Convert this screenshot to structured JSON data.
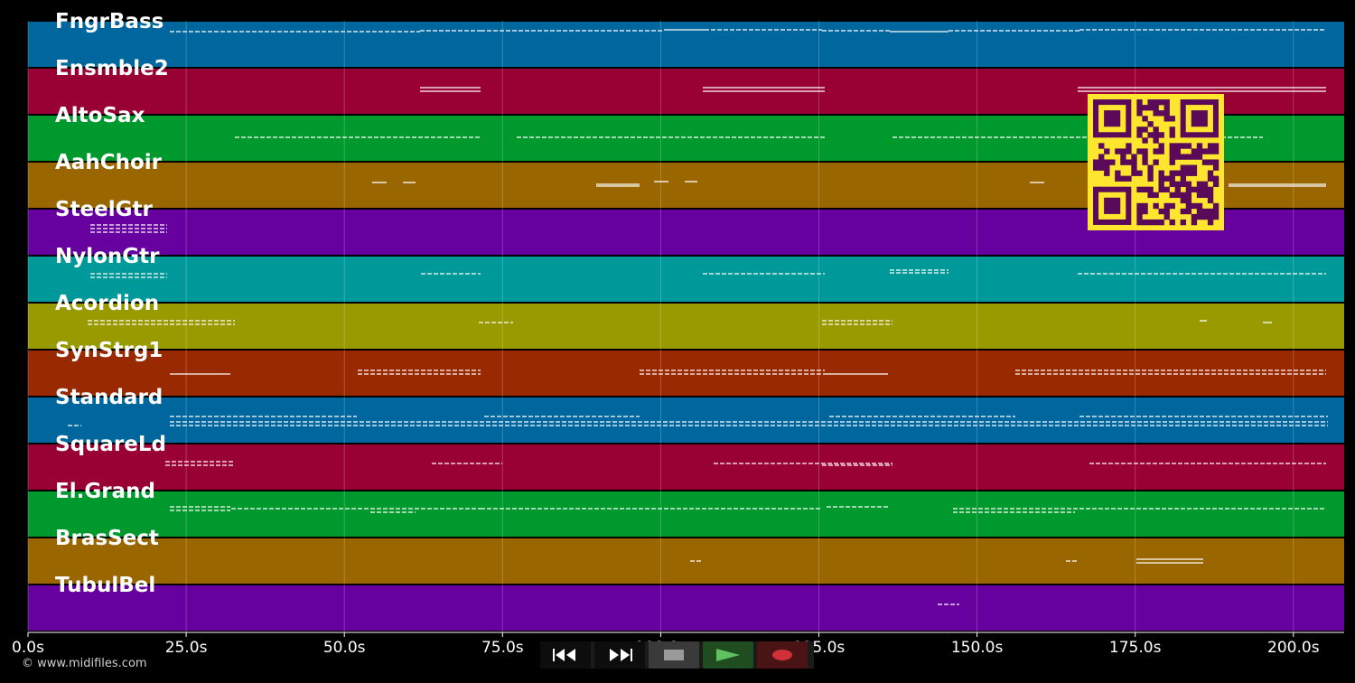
{
  "tracks": [
    {
      "name": "FngrBass",
      "color": "#00669e"
    },
    {
      "name": "Ensmble2",
      "color": "#990033"
    },
    {
      "name": "AltoSax",
      "color": "#00992e"
    },
    {
      "name": "AahChoir",
      "color": "#996600"
    },
    {
      "name": "SteelGtr",
      "color": "#66009e"
    },
    {
      "name": "NylonGtr",
      "color": "#009999"
    },
    {
      "name": "Acordion",
      "color": "#999900"
    },
    {
      "name": "SynStrg1",
      "color": "#992900"
    },
    {
      "name": "Standard",
      "color": "#00669e"
    },
    {
      "name": "SquareLd",
      "color": "#990033"
    },
    {
      "name": "El.Grand",
      "color": "#00992e"
    },
    {
      "name": "BrasSect",
      "color": "#996600"
    },
    {
      "name": "TubulBel",
      "color": "#66009e"
    }
  ],
  "axis": {
    "ticks": [
      "0.0s",
      "25.0s",
      "50.0s",
      "75.0s",
      "100.0s",
      "125.0s",
      "150.0s",
      "175.0s",
      "200.0s"
    ]
  },
  "controls": [
    {
      "name": "rewind-button",
      "icon": "rewind-icon"
    },
    {
      "name": "fast-forward-button",
      "icon": "fast-forward-icon"
    },
    {
      "name": "stop-button",
      "icon": "stop-icon"
    },
    {
      "name": "play-button",
      "icon": "play-icon"
    },
    {
      "name": "record-button",
      "icon": "record-icon"
    }
  ],
  "qr": {
    "fg": "#5a0a58",
    "bg": "#ffe62e"
  },
  "credit": "© www.midifiles.com"
}
